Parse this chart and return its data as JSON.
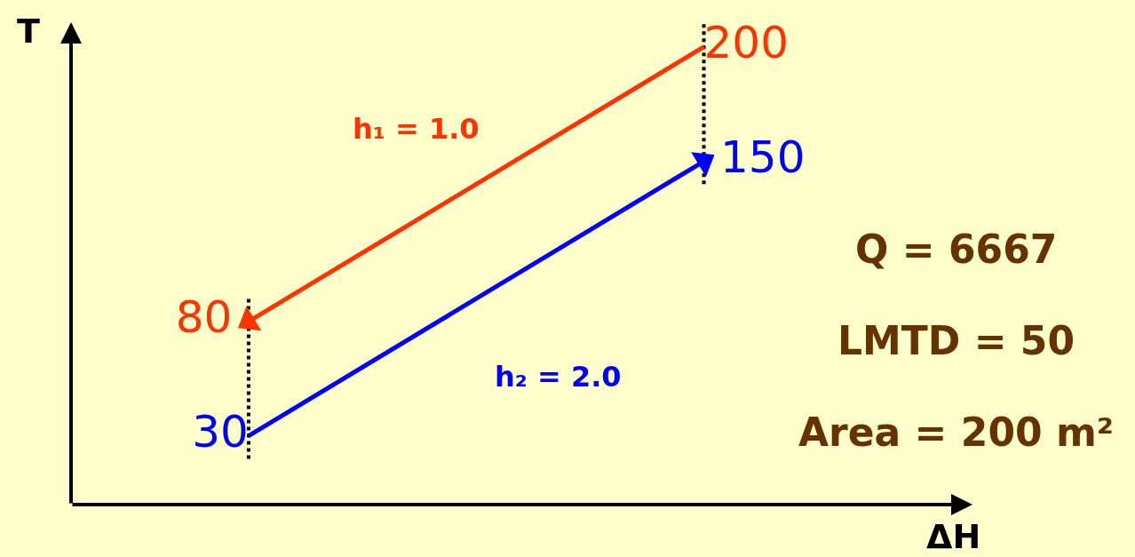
{
  "chart_data": {
    "type": "line",
    "xlabel": "ΔH",
    "ylabel": "T",
    "categories": [
      null,
      null
    ],
    "series": [
      {
        "name": "h₁ = 1.0",
        "color": "#ff3300",
        "values": [
          80,
          200
        ]
      },
      {
        "name": "h₂ = 2.0",
        "color": "#0000ff",
        "values": [
          30,
          150
        ]
      }
    ],
    "data_labels": true,
    "tick_labels": false,
    "annotations": [
      "Q = 6667",
      "LMTD = 50",
      "Area = 200 m²"
    ]
  }
}
